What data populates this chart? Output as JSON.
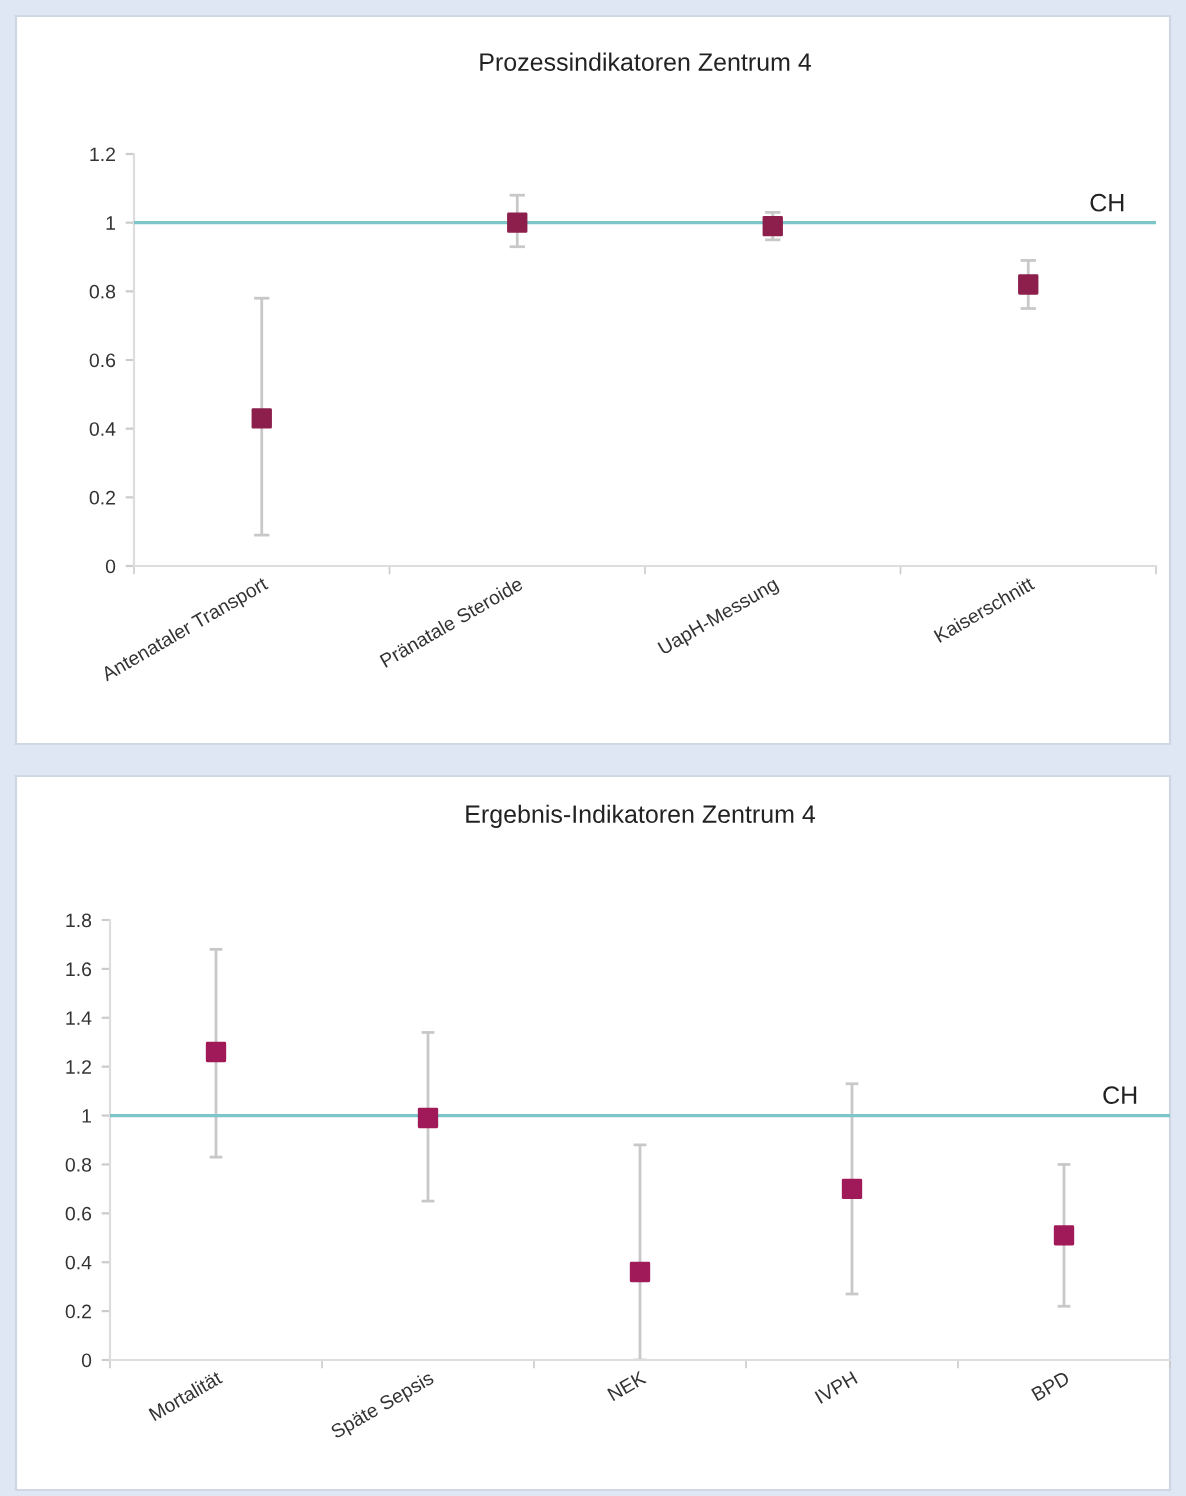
{
  "chart_data": [
    {
      "type": "scatter",
      "title": "Prozessindikatoren Zentrum 4",
      "categories": [
        "Antenataler Transport",
        "Pränatale Steroide",
        "UapH-Messung",
        "Kaiserschnitt"
      ],
      "series": [
        {
          "color": "#8c1f4c",
          "values": [
            0.43,
            1.0,
            0.99,
            0.82
          ],
          "errors": [
            [
              0.09,
              0.78
            ],
            [
              0.93,
              1.08
            ],
            [
              0.95,
              1.03
            ],
            [
              0.75,
              0.89
            ]
          ]
        }
      ],
      "ylim": [
        0,
        1.2
      ],
      "yticks": [
        0,
        0.2,
        0.4,
        0.6,
        0.8,
        1,
        1.2
      ],
      "marker": "square",
      "grid": false,
      "ref_lines": [
        {
          "axis": "y",
          "value": 1,
          "label": "CH",
          "color": "#7cc5c9"
        }
      ]
    },
    {
      "type": "scatter",
      "title": "Ergebnis-Indikatoren Zentrum 4",
      "categories": [
        "Mortalität",
        "Späte Sepsis",
        "NEK",
        "IVPH",
        "BPD"
      ],
      "series": [
        {
          "color": "#a01a5a",
          "values": [
            1.26,
            0.99,
            0.36,
            0.7,
            0.51
          ],
          "errors": [
            [
              0.83,
              1.68
            ],
            [
              0.65,
              1.34
            ],
            [
              0.0,
              0.88
            ],
            [
              0.27,
              1.13
            ],
            [
              0.22,
              0.8
            ]
          ]
        }
      ],
      "ylim": [
        0,
        1.8
      ],
      "yticks": [
        0,
        0.2,
        0.4,
        0.6,
        0.8,
        1,
        1.2,
        1.4,
        1.6,
        1.8
      ],
      "marker": "square",
      "grid": false,
      "ref_lines": [
        {
          "axis": "y",
          "value": 1,
          "label": "CH",
          "color": "#7cc5c9"
        }
      ]
    }
  ]
}
